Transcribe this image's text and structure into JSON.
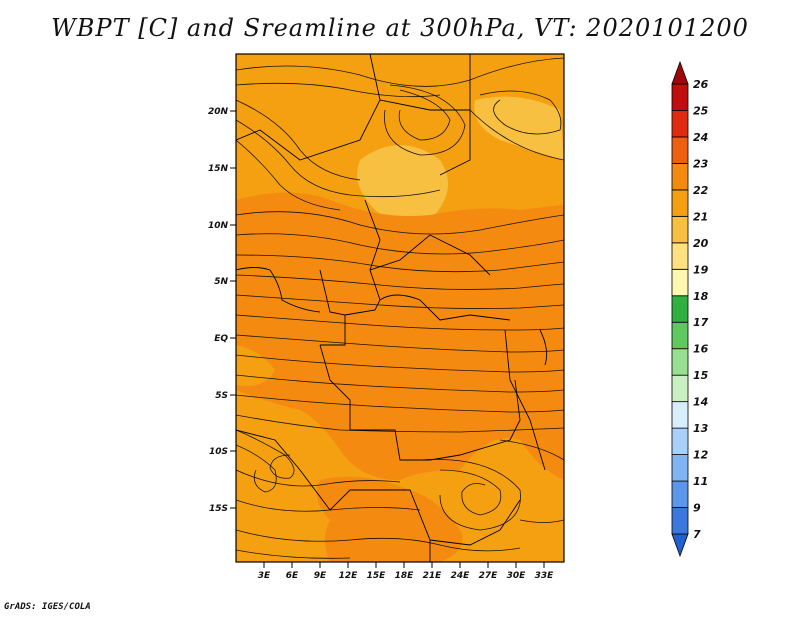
{
  "title": "WBPT [C] and Sreamline at 300hPa, VT: 2020101200",
  "credit": "GrADS: IGES/COLA",
  "map": {
    "lat_labels": [
      "20N",
      "15N",
      "10N",
      "5N",
      "EQ",
      "5S",
      "10S",
      "15S"
    ],
    "lon_labels": [
      "3E",
      "6E",
      "9E",
      "12E",
      "15E",
      "18E",
      "21E",
      "24E",
      "27E",
      "30E",
      "33E"
    ]
  },
  "colorbar": {
    "levels": [
      "7",
      "9",
      "11",
      "12",
      "13",
      "14",
      "15",
      "16",
      "17",
      "18",
      "19",
      "20",
      "21",
      "22",
      "23",
      "24",
      "25",
      "26"
    ],
    "colors": [
      "#2060d0",
      "#3a78e0",
      "#5a96ea",
      "#80b4f2",
      "#a8d0f8",
      "#d8eefa",
      "#c8f0c0",
      "#98e090",
      "#60c860",
      "#30b040",
      "#fff6b0",
      "#fde080",
      "#f8c040",
      "#f5a010",
      "#f58a10",
      "#ee6010",
      "#e02a10",
      "#c00e0e",
      "#a00808"
    ]
  }
}
